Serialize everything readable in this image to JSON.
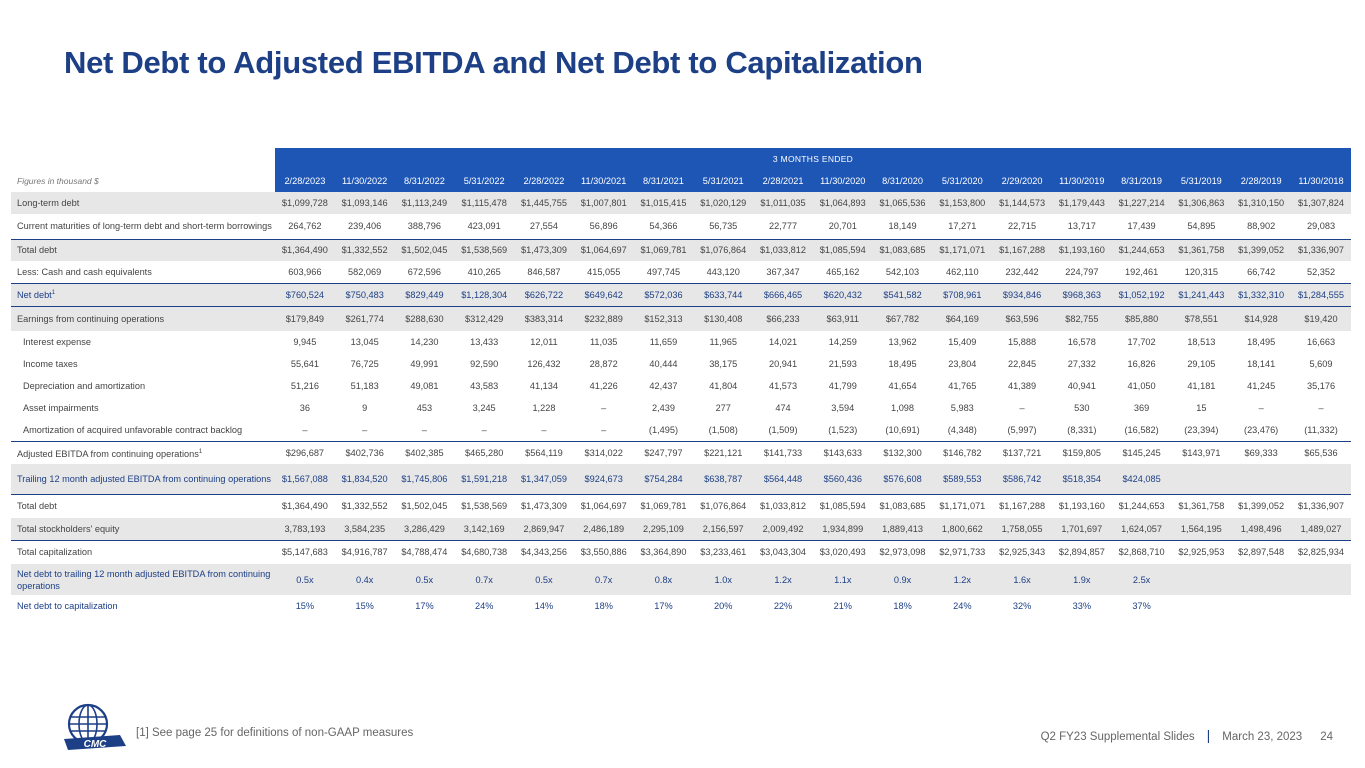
{
  "title": "Net Debt to Adjusted EBITDA and Net Debt to Capitalization",
  "table": {
    "period_header": "3 MONTHS ENDED",
    "units_label": "Figures in thousand $",
    "columns": [
      "2/28/2023",
      "11/30/2022",
      "8/31/2022",
      "5/31/2022",
      "2/28/2022",
      "11/30/2021",
      "8/31/2021",
      "5/31/2021",
      "2/28/2021",
      "11/30/2020",
      "8/31/2020",
      "5/31/2020",
      "2/29/2020",
      "11/30/2019",
      "8/31/2019",
      "5/31/2019",
      "2/28/2019",
      "11/30/2018"
    ],
    "rows": [
      {
        "label": "Long-term debt",
        "values": [
          "$1,099,728",
          "$1,093,146",
          "$1,113,249",
          "$1,115,478",
          "$1,445,755",
          "$1,007,801",
          "$1,015,415",
          "$1,020,129",
          "$1,011,035",
          "$1,064,893",
          "$1,065,536",
          "$1,153,800",
          "$1,144,573",
          "$1,179,443",
          "$1,227,214",
          "$1,306,863",
          "$1,310,150",
          "$1,307,824"
        ]
      },
      {
        "label": "Current maturities of long-term debt and short-term borrowings",
        "values": [
          "264,762",
          "239,406",
          "388,796",
          "423,091",
          "27,554",
          "56,896",
          "54,366",
          "56,735",
          "22,777",
          "20,701",
          "18,149",
          "17,271",
          "22,715",
          "13,717",
          "17,439",
          "54,895",
          "88,902",
          "29,083"
        ]
      },
      {
        "label": "Total debt",
        "values": [
          "$1,364,490",
          "$1,332,552",
          "$1,502,045",
          "$1,538,569",
          "$1,473,309",
          "$1,064,697",
          "$1,069,781",
          "$1,076,864",
          "$1,033,812",
          "$1,085,594",
          "$1,083,685",
          "$1,171,071",
          "$1,167,288",
          "$1,193,160",
          "$1,244,653",
          "$1,361,758",
          "$1,399,052",
          "$1,336,907"
        ]
      },
      {
        "label": "Less: Cash and cash equivalents",
        "values": [
          "603,966",
          "582,069",
          "672,596",
          "410,265",
          "846,587",
          "415,055",
          "497,745",
          "443,120",
          "367,347",
          "465,162",
          "542,103",
          "462,110",
          "232,442",
          "224,797",
          "192,461",
          "120,315",
          "66,742",
          "52,352"
        ]
      },
      {
        "label": "Net debt",
        "sup": "1",
        "values": [
          "$760,524",
          "$750,483",
          "$829,449",
          "$1,128,304",
          "$626,722",
          "$649,642",
          "$572,036",
          "$633,744",
          "$666,465",
          "$620,432",
          "$541,582",
          "$708,961",
          "$934,846",
          "$968,363",
          "$1,052,192",
          "$1,241,443",
          "$1,332,310",
          "$1,284,555"
        ]
      },
      {
        "label": "Earnings from continuing operations",
        "values": [
          "$179,849",
          "$261,774",
          "$288,630",
          "$312,429",
          "$383,314",
          "$232,889",
          "$152,313",
          "$130,408",
          "$66,233",
          "$63,911",
          "$67,782",
          "$64,169",
          "$63,596",
          "$82,755",
          "$85,880",
          "$78,551",
          "$14,928",
          "$19,420"
        ]
      },
      {
        "label": "Interest expense",
        "values": [
          "9,945",
          "13,045",
          "14,230",
          "13,433",
          "12,011",
          "11,035",
          "11,659",
          "11,965",
          "14,021",
          "14,259",
          "13,962",
          "15,409",
          "15,888",
          "16,578",
          "17,702",
          "18,513",
          "18,495",
          "16,663"
        ]
      },
      {
        "label": "Income taxes",
        "values": [
          "55,641",
          "76,725",
          "49,991",
          "92,590",
          "126,432",
          "28,872",
          "40,444",
          "38,175",
          "20,941",
          "21,593",
          "18,495",
          "23,804",
          "22,845",
          "27,332",
          "16,826",
          "29,105",
          "18,141",
          "5,609"
        ]
      },
      {
        "label": "Depreciation and amortization",
        "values": [
          "51,216",
          "51,183",
          "49,081",
          "43,583",
          "41,134",
          "41,226",
          "42,437",
          "41,804",
          "41,573",
          "41,799",
          "41,654",
          "41,765",
          "41,389",
          "40,941",
          "41,050",
          "41,181",
          "41,245",
          "35,176"
        ]
      },
      {
        "label": "Asset impairments",
        "values": [
          "36",
          "9",
          "453",
          "3,245",
          "1,228",
          "–",
          "2,439",
          "277",
          "474",
          "3,594",
          "1,098",
          "5,983",
          "–",
          "530",
          "369",
          "15",
          "–",
          "–"
        ]
      },
      {
        "label": "Amortization of acquired unfavorable contract backlog",
        "values": [
          "–",
          "–",
          "–",
          "–",
          "–",
          "–",
          "(1,495)",
          "(1,508)",
          "(1,509)",
          "(1,523)",
          "(10,691)",
          "(4,348)",
          "(5,997)",
          "(8,331)",
          "(16,582)",
          "(23,394)",
          "(23,476)",
          "(11,332)"
        ]
      },
      {
        "label": "Adjusted EBITDA from continuing operations",
        "sup": "1",
        "values": [
          "$296,687",
          "$402,736",
          "$402,385",
          "$465,280",
          "$564,119",
          "$314,022",
          "$247,797",
          "$221,121",
          "$141,733",
          "$143,633",
          "$132,300",
          "$146,782",
          "$137,721",
          "$159,805",
          "$145,245",
          "$143,971",
          "$69,333",
          "$65,536"
        ]
      },
      {
        "label": "Trailing 12 month adjusted EBITDA from continuing operations",
        "values": [
          "$1,567,088",
          "$1,834,520",
          "$1,745,806",
          "$1,591,218",
          "$1,347,059",
          "$924,673",
          "$754,284",
          "$638,787",
          "$564,448",
          "$560,436",
          "$576,608",
          "$589,553",
          "$586,742",
          "$518,354",
          "$424,085",
          "",
          "",
          ""
        ]
      },
      {
        "label": "Total debt",
        "values": [
          "$1,364,490",
          "$1,332,552",
          "$1,502,045",
          "$1,538,569",
          "$1,473,309",
          "$1,064,697",
          "$1,069,781",
          "$1,076,864",
          "$1,033,812",
          "$1,085,594",
          "$1,083,685",
          "$1,171,071",
          "$1,167,288",
          "$1,193,160",
          "$1,244,653",
          "$1,361,758",
          "$1,399,052",
          "$1,336,907"
        ]
      },
      {
        "label": "Total stockholders' equity",
        "values": [
          "3,783,193",
          "3,584,235",
          "3,286,429",
          "3,142,169",
          "2,869,947",
          "2,486,189",
          "2,295,109",
          "2,156,597",
          "2,009,492",
          "1,934,899",
          "1,889,413",
          "1,800,662",
          "1,758,055",
          "1,701,697",
          "1,624,057",
          "1,564,195",
          "1,498,496",
          "1,489,027"
        ]
      },
      {
        "label": "Total capitalization",
        "values": [
          "$5,147,683",
          "$4,916,787",
          "$4,788,474",
          "$4,680,738",
          "$4,343,256",
          "$3,550,886",
          "$3,364,890",
          "$3,233,461",
          "$3,043,304",
          "$3,020,493",
          "$2,973,098",
          "$2,971,733",
          "$2,925,343",
          "$2,894,857",
          "$2,868,710",
          "$2,925,953",
          "$2,897,548",
          "$2,825,934"
        ]
      },
      {
        "label": "Net debt to trailing 12 month adjusted EBITDA from continuing operations",
        "values": [
          "0.5x",
          "0.4x",
          "0.5x",
          "0.7x",
          "0.5x",
          "0.7x",
          "0.8x",
          "1.0x",
          "1.2x",
          "1.1x",
          "0.9x",
          "1.2x",
          "1.6x",
          "1.9x",
          "2.5x",
          "",
          "",
          ""
        ]
      },
      {
        "label": "Net debt to capitalization",
        "values": [
          "15%",
          "15%",
          "17%",
          "24%",
          "14%",
          "18%",
          "17%",
          "20%",
          "22%",
          "21%",
          "18%",
          "24%",
          "32%",
          "33%",
          "37%",
          "",
          "",
          ""
        ]
      }
    ]
  },
  "footer": {
    "footnote": "[1] See page 25 for definitions of non-GAAP measures",
    "deck": "Q2 FY23 Supplemental Slides",
    "date": "March 23, 2023",
    "page": "24",
    "logo_text": "CMC"
  },
  "colors": {
    "brand_navy": "#1c3f86",
    "header_blue": "#1e56b6",
    "shade": "#e7e7e7"
  }
}
